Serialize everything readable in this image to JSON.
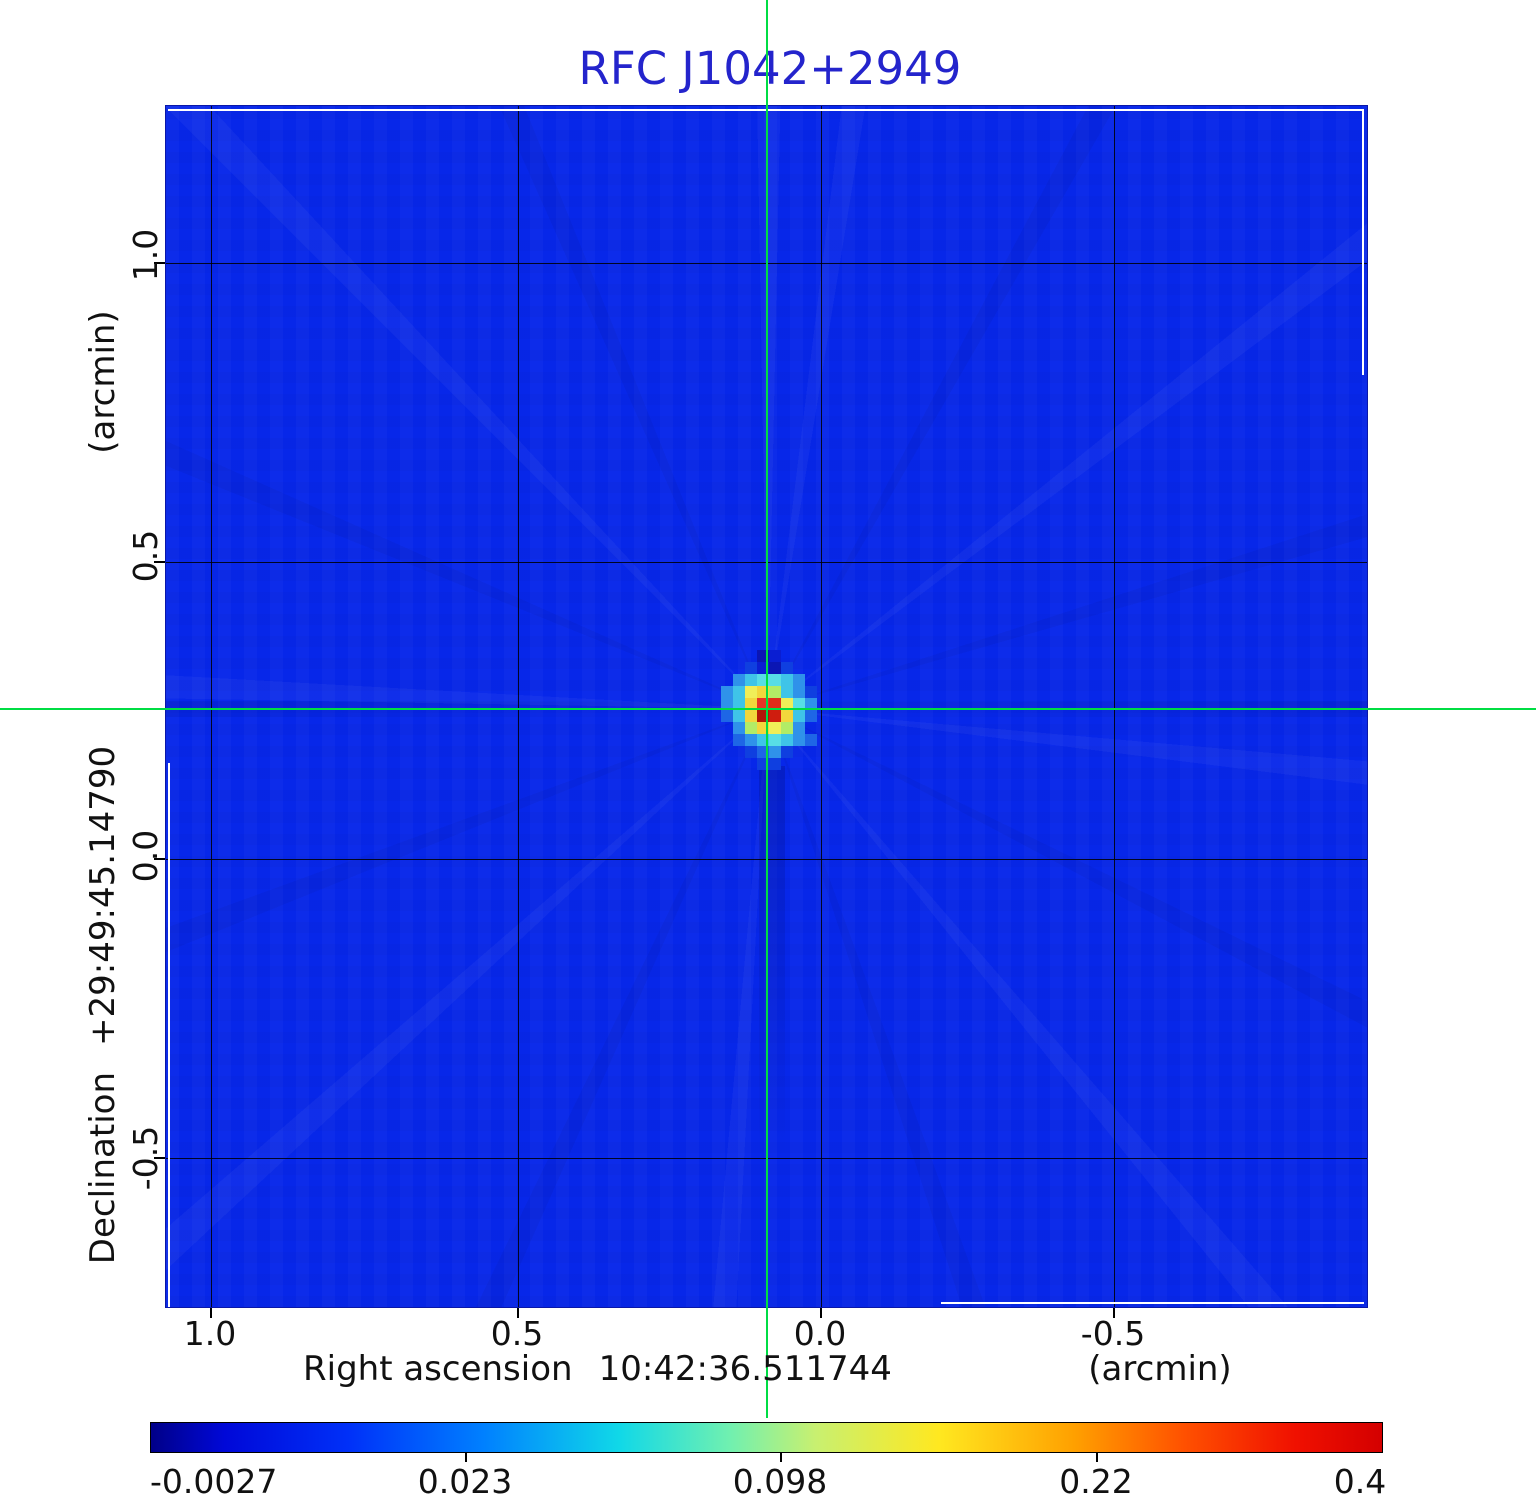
{
  "title": {
    "text": "RFC J1042+2949"
  },
  "plot": {
    "x_axis": {
      "label": "Right ascension",
      "coordinate": "10:42:36.511744",
      "unit": "(arcmin)",
      "tick_labels": [
        "1.0",
        "0.5",
        "0.0",
        "-0.5"
      ]
    },
    "y_axis": {
      "label": "Declination",
      "coordinate": "+29:49:45.14790",
      "unit": "(arcmin)",
      "tick_labels": [
        "1.0",
        "0.5",
        "0.0",
        "-0.5"
      ]
    }
  },
  "colorbar": {
    "tick_labels": [
      "-0.0027",
      "0.023",
      "0.098",
      "0.22",
      "0.4"
    ]
  },
  "colors": {
    "title_blue": "#2424cc",
    "map_background": "#0727e9",
    "crosshair_green": "#00dd44",
    "gridline_black": "#000000",
    "colorbar_min": "#000088",
    "colorbar_max": "#d40000"
  },
  "chart_data": {
    "type": "heatmap",
    "title": "RFC J1042+2949",
    "xlabel": "Right ascension 10:42:36.511744 (arcmin)",
    "ylabel": "Declination +29:49:45.14790 (arcmin)",
    "x_ticks_arcmin": [
      1.0,
      0.5,
      0.0,
      -0.5
    ],
    "y_ticks_arcmin": [
      1.0,
      0.5,
      0.0,
      -0.5
    ],
    "x_range_arcmin": [
      1.07,
      -0.89
    ],
    "y_range_arcmin": [
      1.26,
      -0.76
    ],
    "grid": true,
    "colorbar_values": [
      -0.0027,
      0.023,
      0.098,
      0.22,
      0.4
    ],
    "colorbar_scale": "nonlinear",
    "background_level": 0.0,
    "source": {
      "description": "compact point source at map center marked by green crosshair",
      "peak_color_value": 0.4,
      "center_offset_arcmin": {
        "x": 0.09,
        "y": 0.25
      },
      "pixel_size_px": 12,
      "palette": {
        "A": "#0b16b4",
        "a": "#0a1ed2",
        "1": "#0f3fe0",
        "2": "#1e66e6",
        "3": "#2f92ea",
        "c": "#3fc4e8",
        "C": "#58dde6",
        "g": "#b2ec66",
        "y": "#f0ee58",
        "Y": "#f2d63c",
        "r": "#e53426",
        "R": "#df2c1a",
        "d": "#b21607",
        "D": "#cf1d0e"
      },
      "pixels": [
        "....Aa....",
        "...1aA1...",
        "..3cCCc3..",
        ".3cyYgc31.",
        ".3cYrRyC3.",
        ".2cYdDYc2.",
        "..3gYyg3..",
        "..23cCc32.",
        "...1231...",
        "....11...."
      ]
    }
  }
}
